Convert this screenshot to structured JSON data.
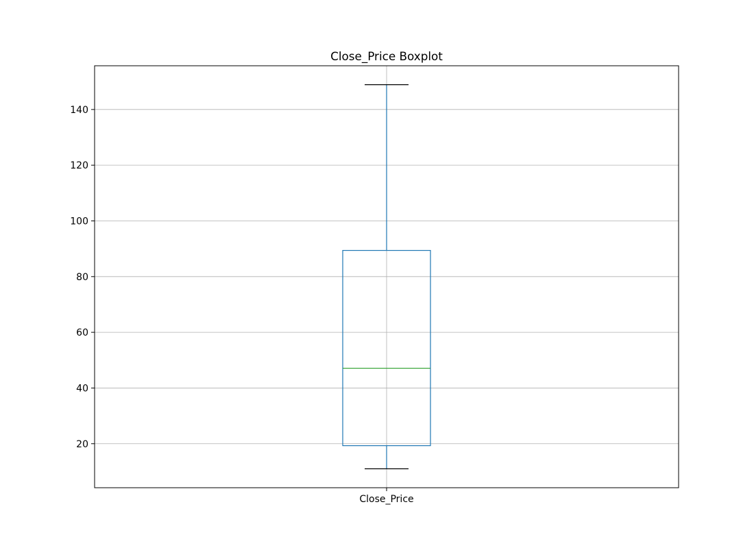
{
  "chart_data": {
    "type": "box",
    "title": "Close_Price Boxplot",
    "xlabel": "",
    "ylabel": "",
    "categories": [
      "Close_Price"
    ],
    "series": [
      {
        "whisker_low": 11.0,
        "q1": 19.3,
        "median": 47.1,
        "q3": 89.4,
        "whisker_high": 148.9
      }
    ],
    "ylim": [
      4.2,
      155.7
    ],
    "yticks": [
      20,
      40,
      60,
      80,
      100,
      120,
      140
    ],
    "grid": true,
    "legend": "none",
    "colors": {
      "box": "#1f77b4",
      "median": "#2ca02c",
      "caps": "#000000",
      "grid": "#b0b0b0",
      "axes": "#000000"
    }
  }
}
